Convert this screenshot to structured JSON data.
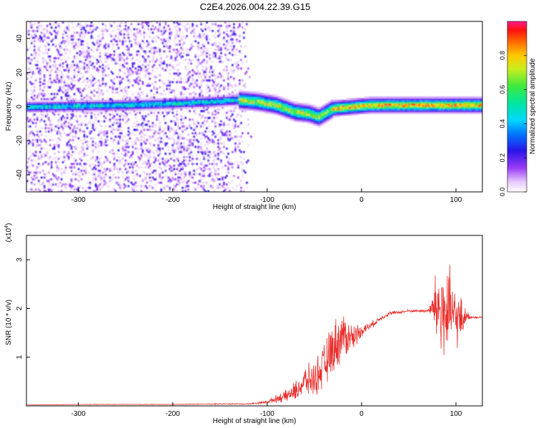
{
  "title": "C2E4.2026.004.22.39.G15",
  "colors": {
    "line": "#e8302d",
    "axis": "#000000",
    "background": "#ffffff"
  },
  "chart_data": [
    {
      "type": "heatmap",
      "name": "spectrogram",
      "xlabel": "Height of straight line (km)",
      "ylabel": "Frequency (Hz)",
      "xlim": [
        -355,
        128
      ],
      "ylim": [
        -50,
        50
      ],
      "xticks": [
        -300,
        -200,
        -100,
        0,
        100
      ],
      "yticks": [
        -40,
        -20,
        0,
        20,
        40
      ],
      "colorbar": {
        "label": "Normalized spectral amplitude",
        "range": [
          0,
          1
        ],
        "ticks": [
          "0.0",
          "0.2",
          "0.4",
          "0.6",
          "0.8"
        ],
        "tick_values": [
          0.0,
          0.2,
          0.4,
          0.6,
          0.8
        ]
      },
      "ridge_frequency_hz": {
        "x": [
          -355,
          -300,
          -250,
          -200,
          -160,
          -130,
          -110,
          -90,
          -70,
          -55,
          -45,
          -30,
          -10,
          10,
          40,
          80,
          128
        ],
        "y": [
          0,
          0.5,
          1,
          2,
          3,
          4,
          3,
          1,
          -3,
          -4,
          -6,
          -1,
          0,
          1,
          1,
          1,
          1
        ]
      }
    },
    {
      "type": "line",
      "name": "snr",
      "xlabel": "Height of straight line (km)",
      "ylabel": "SNR (10 * v/v)",
      "yscale_label": "(x10",
      "yscale_exponent": "4",
      "yscale_close": ")",
      "xlim": [
        -355,
        128
      ],
      "ylim": [
        0,
        3.5
      ],
      "xticks": [
        -300,
        -200,
        -100,
        0,
        100
      ],
      "yticks": [
        1,
        2,
        3
      ],
      "series": [
        {
          "name": "SNR",
          "x": [
            -355,
            -300,
            -250,
            -200,
            -150,
            -120,
            -100,
            -90,
            -80,
            -70,
            -60,
            -50,
            -40,
            -30,
            -20,
            -10,
            0,
            10,
            20,
            30,
            40,
            50,
            60,
            70,
            75,
            80,
            85,
            90,
            95,
            100,
            105,
            110,
            115,
            128
          ],
          "y": [
            0.02,
            0.03,
            0.03,
            0.03,
            0.04,
            0.04,
            0.08,
            0.15,
            0.2,
            0.3,
            0.5,
            0.55,
            0.8,
            1.2,
            1.45,
            1.4,
            1.55,
            1.65,
            1.8,
            1.9,
            1.92,
            1.95,
            1.95,
            1.95,
            2.0,
            2.05,
            1.95,
            1.85,
            1.9,
            1.8,
            1.75,
            1.85,
            1.82,
            1.82
          ],
          "noise": [
            0,
            0.005,
            0.005,
            0.005,
            0.01,
            0.01,
            0.03,
            0.08,
            0.12,
            0.2,
            0.3,
            0.35,
            0.45,
            0.55,
            0.5,
            0.3,
            0.12,
            0.08,
            0.05,
            0.04,
            0.03,
            0.03,
            0.03,
            0.04,
            0.25,
            0.9,
            1.2,
            1.1,
            0.8,
            0.6,
            0.5,
            0.15,
            0.03,
            0.02
          ]
        }
      ]
    }
  ]
}
